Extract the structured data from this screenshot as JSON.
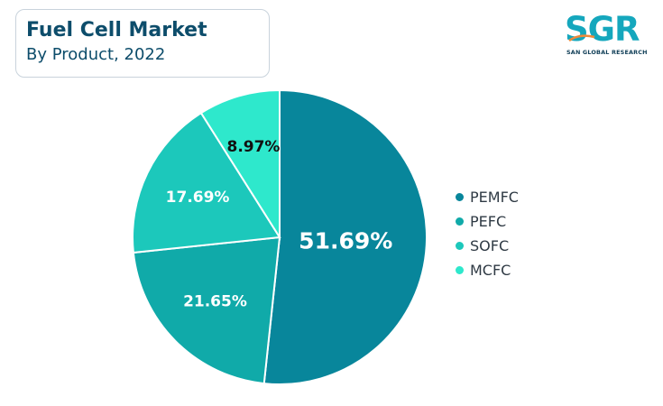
{
  "header": {
    "title": "Fuel Cell Market",
    "subtitle": "By Product, 2022"
  },
  "logo": {
    "text": "SGR",
    "subtext": "SAN GLOBAL RESEARCH",
    "color": "#15a7bd"
  },
  "chart_data": {
    "type": "pie",
    "title": "Fuel Cell Market",
    "subtitle": "By Product, 2022",
    "legend_position": "right",
    "slices": [
      {
        "name": "PEMFC",
        "value": 51.69,
        "label": "51.69%",
        "color": "#08869b"
      },
      {
        "name": "PEFC",
        "value": 21.65,
        "label": "21.65%",
        "color": "#10aaa9"
      },
      {
        "name": "SOFC",
        "value": 17.69,
        "label": "17.69%",
        "color": "#1cc8bb"
      },
      {
        "name": "MCFC",
        "value": 8.97,
        "label": "8.97%",
        "color": "#2ee8cc"
      }
    ]
  }
}
